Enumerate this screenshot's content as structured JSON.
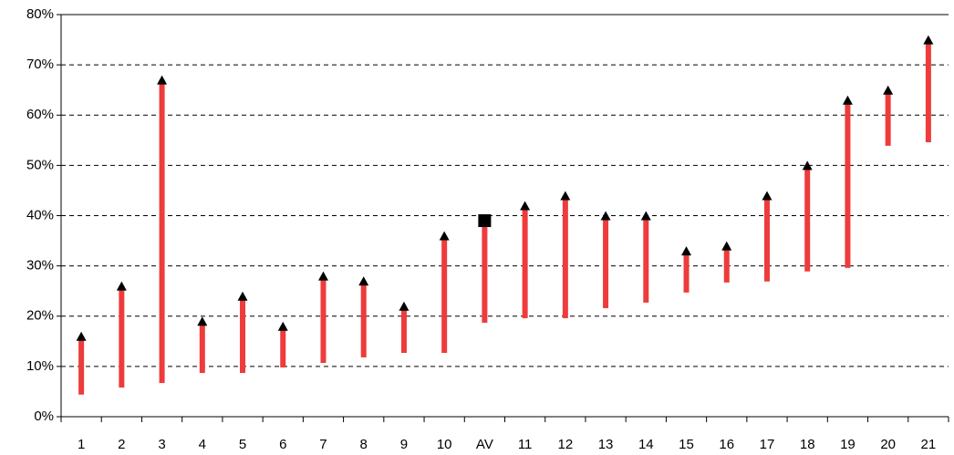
{
  "chart_data": {
    "type": "floating-bar",
    "categories": [
      "1",
      "2",
      "3",
      "4",
      "5",
      "6",
      "7",
      "8",
      "9",
      "10",
      "AV",
      "11",
      "12",
      "13",
      "14",
      "15",
      "16",
      "17",
      "18",
      "19",
      "20",
      "21"
    ],
    "low": [
      4.4,
      5.8,
      6.7,
      8.7,
      8.7,
      9.8,
      10.7,
      11.8,
      12.7,
      12.7,
      18.7,
      19.6,
      19.6,
      21.6,
      22.7,
      24.7,
      26.7,
      26.9,
      28.9,
      29.6,
      53.9,
      54.6
    ],
    "high": [
      16,
      26,
      67,
      19,
      24,
      18,
      28,
      27,
      22,
      36,
      39,
      42,
      44,
      40,
      40,
      33,
      34,
      44,
      50,
      63,
      65,
      75
    ],
    "markers": [
      "triangle",
      "triangle",
      "triangle",
      "triangle",
      "triangle",
      "triangle",
      "triangle",
      "triangle",
      "triangle",
      "triangle",
      "square",
      "triangle",
      "triangle",
      "triangle",
      "triangle",
      "triangle",
      "triangle",
      "triangle",
      "triangle",
      "triangle",
      "triangle",
      "triangle"
    ],
    "color": "#ee3b3b",
    "marker_color": "#000000",
    "ylim": [
      0,
      80
    ],
    "yticks": [
      {
        "value": 0,
        "label": "0%"
      },
      {
        "value": 10,
        "label": "10%"
      },
      {
        "value": 20,
        "label": "20%"
      },
      {
        "value": 30,
        "label": "30%"
      },
      {
        "value": 40,
        "label": "40%"
      },
      {
        "value": 50,
        "label": "50%"
      },
      {
        "value": 60,
        "label": "60%"
      },
      {
        "value": 70,
        "label": "70%"
      },
      {
        "value": 80,
        "label": "80%"
      }
    ],
    "grid": true
  }
}
